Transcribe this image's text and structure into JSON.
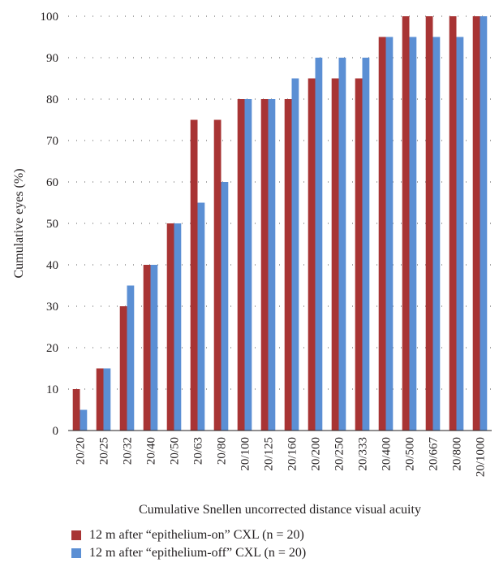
{
  "chart_data": {
    "type": "bar",
    "title": "",
    "xlabel": "Cumulative Snellen uncorrected distance visual acuity",
    "ylabel": "Cumulative eyes (%)",
    "ylim": [
      0,
      100
    ],
    "yticks": [
      0,
      10,
      20,
      30,
      40,
      50,
      60,
      70,
      80,
      90,
      100
    ],
    "grid": "dotted horizontal",
    "legend_position": "bottom",
    "categories": [
      "20/20",
      "20/25",
      "20/32",
      "20/40",
      "20/50",
      "20/63",
      "20/80",
      "20/100",
      "20/125",
      "20/160",
      "20/200",
      "20/250",
      "20/333",
      "20/400",
      "20/500",
      "20/667",
      "20/800",
      "20/1000"
    ],
    "series": [
      {
        "name": "12 m after “epithelium-on” CXL (n = 20)",
        "color": "#a83434",
        "values": [
          10,
          15,
          30,
          40,
          50,
          75,
          75,
          80,
          80,
          80,
          85,
          85,
          85,
          95,
          100,
          100,
          100,
          100
        ]
      },
      {
        "name": "12 m after “epithelium-off” CXL (n = 20)",
        "color": "#5b8fd4",
        "values": [
          5,
          15,
          35,
          40,
          50,
          55,
          60,
          80,
          80,
          85,
          90,
          90,
          90,
          95,
          95,
          95,
          95,
          100
        ]
      }
    ]
  }
}
